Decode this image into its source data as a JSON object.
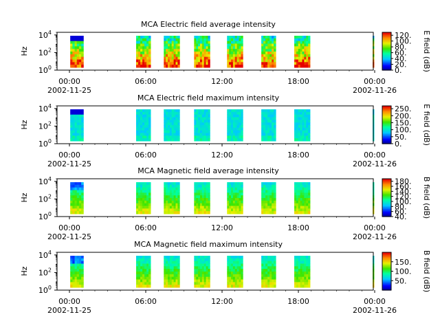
{
  "chart_data": [
    {
      "type": "heatmap",
      "title": "MCA  Electric field average intensity",
      "ylabel": "Hz",
      "yscale": "log",
      "ylim": [
        1,
        20000
      ],
      "yticks": [
        {
          "exp": "0",
          "value": 1
        },
        {
          "exp": "2",
          "value": 100
        },
        {
          "exp": "4",
          "value": 10000
        }
      ],
      "xlim": [
        "2002-11-25 00:00",
        "2002-11-26 00:00"
      ],
      "xticks": [
        {
          "time": "00:00",
          "date": "2002-11-25"
        },
        {
          "time": "06:00",
          "date": ""
        },
        {
          "time": "12:00",
          "date": ""
        },
        {
          "time": "18:00",
          "date": ""
        },
        {
          "time": "00:00",
          "date": "2002-11-26"
        }
      ],
      "colorbar": {
        "label": "E field (dB)",
        "range": [
          0,
          130
        ],
        "ticks": [
          "0.",
          "20.",
          "40.",
          "60.",
          "80.",
          "100.",
          "120."
        ]
      },
      "palette": "rainbow-low",
      "hot_band": true,
      "data_intervals_hours": [
        [
          1.0,
          2.0
        ],
        [
          6.0,
          7.1
        ],
        [
          8.1,
          9.3
        ],
        [
          10.4,
          11.6
        ],
        [
          12.9,
          14.1
        ],
        [
          15.5,
          16.6
        ],
        [
          18.0,
          19.2
        ],
        [
          23.95,
          24.0
        ]
      ]
    },
    {
      "type": "heatmap",
      "title": "MCA  Electric field maximum intensity",
      "ylabel": "Hz",
      "yscale": "log",
      "ylim": [
        1,
        20000
      ],
      "yticks": [
        {
          "exp": "0",
          "value": 1
        },
        {
          "exp": "2",
          "value": 100
        },
        {
          "exp": "4",
          "value": 10000
        }
      ],
      "xlim": [
        "2002-11-25 00:00",
        "2002-11-26 00:00"
      ],
      "xticks": [
        {
          "time": "00:00",
          "date": "2002-11-25"
        },
        {
          "time": "06:00",
          "date": ""
        },
        {
          "time": "12:00",
          "date": ""
        },
        {
          "time": "18:00",
          "date": ""
        },
        {
          "time": "00:00",
          "date": "2002-11-26"
        }
      ],
      "colorbar": {
        "label": "E field (dB)",
        "range": [
          0,
          270
        ],
        "ticks": [
          "0.",
          "50.",
          "100.",
          "150.",
          "200.",
          "250."
        ]
      },
      "palette": "cyan-dominant",
      "hot_band": false,
      "data_intervals_hours": [
        [
          1.0,
          2.0
        ],
        [
          6.0,
          7.1
        ],
        [
          8.1,
          9.3
        ],
        [
          10.4,
          11.6
        ],
        [
          12.9,
          14.1
        ],
        [
          15.5,
          16.6
        ],
        [
          18.0,
          19.2
        ],
        [
          23.95,
          24.0
        ]
      ]
    },
    {
      "type": "heatmap",
      "title": "MCA  Magnetic field average intensity",
      "ylabel": "Hz",
      "yscale": "log",
      "ylim": [
        1,
        20000
      ],
      "yticks": [
        {
          "exp": "0",
          "value": 1
        },
        {
          "exp": "2",
          "value": 100
        },
        {
          "exp": "4",
          "value": 10000
        }
      ],
      "xlim": [
        "2002-11-25 00:00",
        "2002-11-26 00:00"
      ],
      "xticks": [
        {
          "time": "00:00",
          "date": "2002-11-25"
        },
        {
          "time": "06:00",
          "date": ""
        },
        {
          "time": "12:00",
          "date": ""
        },
        {
          "time": "18:00",
          "date": ""
        },
        {
          "time": "00:00",
          "date": "2002-11-26"
        }
      ],
      "colorbar": {
        "label": "B field (dB)",
        "range": [
          40,
          190
        ],
        "ticks": [
          "40.",
          "60.",
          "80.",
          "100.",
          "120.",
          "140.",
          "160.",
          "180."
        ]
      },
      "palette": "green-yellow",
      "hot_band": false,
      "data_intervals_hours": [
        [
          1.0,
          2.0
        ],
        [
          6.0,
          7.1
        ],
        [
          8.1,
          9.3
        ],
        [
          10.4,
          11.6
        ],
        [
          12.9,
          14.1
        ],
        [
          15.5,
          16.6
        ],
        [
          18.0,
          19.2
        ],
        [
          23.95,
          24.0
        ]
      ]
    },
    {
      "type": "heatmap",
      "title": "MCA  Magnetic field maximum intensity",
      "ylabel": "Hz",
      "yscale": "log",
      "ylim": [
        1,
        20000
      ],
      "yticks": [
        {
          "exp": "0",
          "value": 1
        },
        {
          "exp": "2",
          "value": 100
        },
        {
          "exp": "4",
          "value": 10000
        }
      ],
      "xlim": [
        "2002-11-25 00:00",
        "2002-11-26 00:00"
      ],
      "xticks": [
        {
          "time": "00:00",
          "date": "2002-11-25"
        },
        {
          "time": "06:00",
          "date": ""
        },
        {
          "time": "12:00",
          "date": ""
        },
        {
          "time": "18:00",
          "date": ""
        },
        {
          "time": "00:00",
          "date": "2002-11-26"
        }
      ],
      "colorbar": {
        "label": "B field (dB)",
        "range": [
          0,
          200
        ],
        "ticks": [
          "50.",
          "100.",
          "150."
        ]
      },
      "palette": "green-yellow",
      "hot_band": false,
      "data_intervals_hours": [
        [
          1.0,
          2.0
        ],
        [
          6.0,
          7.1
        ],
        [
          8.1,
          9.3
        ],
        [
          10.4,
          11.6
        ],
        [
          12.9,
          14.1
        ],
        [
          15.5,
          16.6
        ],
        [
          18.0,
          19.2
        ],
        [
          23.95,
          24.0
        ]
      ]
    }
  ]
}
